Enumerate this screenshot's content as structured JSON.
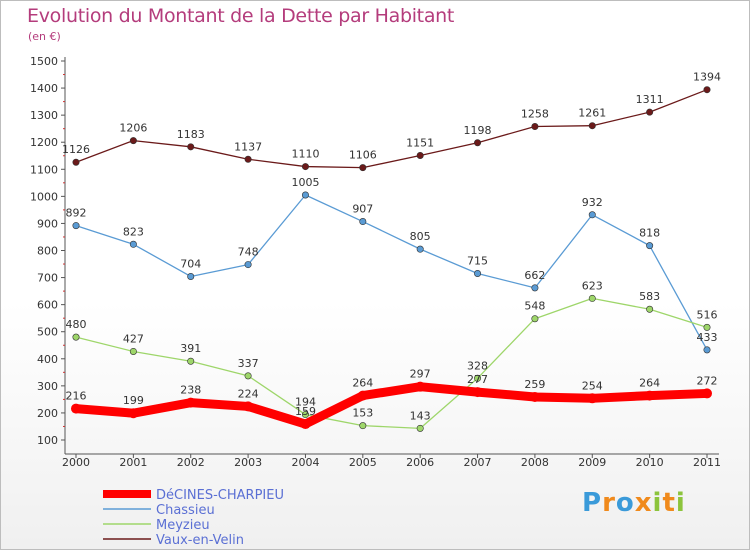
{
  "title": "Evolution du Montant de la Dette par Habitant",
  "subtitle": "(en €)",
  "logo": "Proxiti",
  "chart_data": {
    "type": "line",
    "title": "Evolution du Montant de la Dette par Habitant",
    "ylabel": "(en €)",
    "x": [
      "2000",
      "2001",
      "2002",
      "2003",
      "2004",
      "2005",
      "2006",
      "2007",
      "2008",
      "2009",
      "2010",
      "2011"
    ],
    "ylim": [
      100,
      1500
    ],
    "yticks": [
      100,
      200,
      300,
      400,
      500,
      600,
      700,
      800,
      900,
      1000,
      1100,
      1200,
      1300,
      1400,
      1500
    ],
    "grid": false,
    "legend_position": "bottom-left",
    "series": [
      {
        "name": "Vaux-en-Velin",
        "color": "#6b1a1a",
        "values": [
          1126,
          1206,
          1183,
          1137,
          1110,
          1106,
          1151,
          1198,
          1258,
          1261,
          1311,
          1394
        ]
      },
      {
        "name": "Chassieu",
        "color": "#5a9bd4",
        "values": [
          892,
          823,
          704,
          748,
          1005,
          907,
          805,
          715,
          662,
          932,
          818,
          433
        ]
      },
      {
        "name": "Meyzieu",
        "color": "#9ed66a",
        "values": [
          480,
          427,
          391,
          337,
          194,
          153,
          143,
          328,
          548,
          623,
          583,
          516
        ]
      },
      {
        "name": "DéCINES-CHARPIEU",
        "color": "#ff0000",
        "values": [
          216,
          199,
          238,
          224,
          159,
          264,
          297,
          277,
          259,
          254,
          264,
          272
        ]
      }
    ]
  },
  "legend": [
    {
      "label": "DéCINES-CHARPIEU",
      "color": "#ff0000",
      "text_color": "#5a6fd4"
    },
    {
      "label": "Chassieu",
      "color": "#5a9bd4",
      "text_color": "#5a6fd4"
    },
    {
      "label": "Meyzieu",
      "color": "#9ed66a",
      "text_color": "#5a6fd4"
    },
    {
      "label": "Vaux-en-Velin",
      "color": "#6b1a1a",
      "text_color": "#5a6fd4"
    }
  ]
}
